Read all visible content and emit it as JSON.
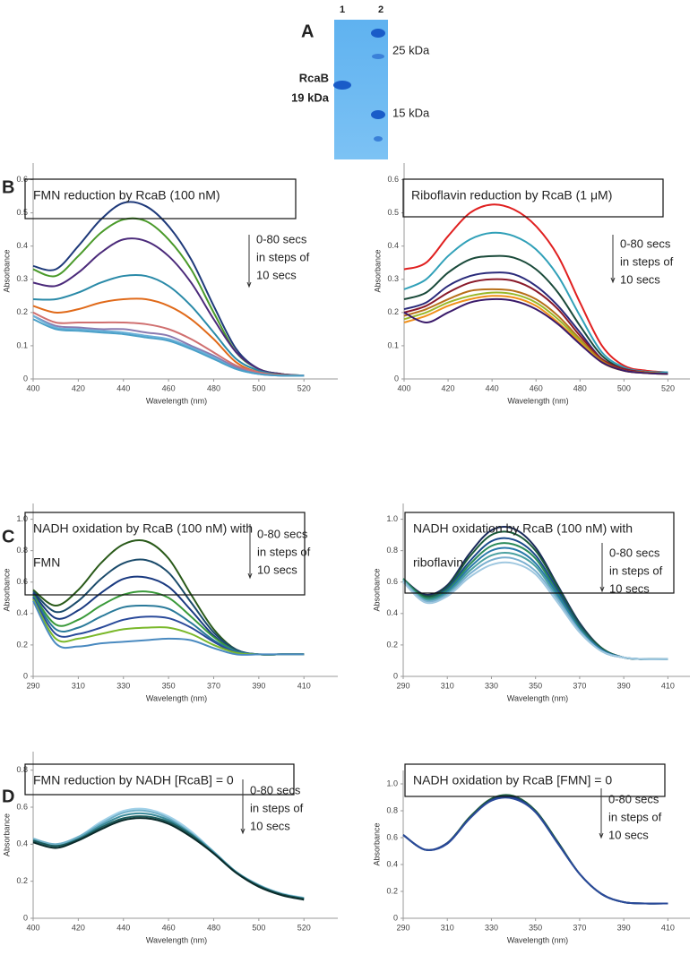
{
  "gel": {
    "panel": "A",
    "lanes": [
      "1",
      "2"
    ],
    "sample_label": [
      "RcaB",
      "19 kDa"
    ],
    "markers": [
      "25 kDa",
      "15 kDa"
    ]
  },
  "chart_data": [
    {
      "type": "line",
      "panel": "B",
      "title": [
        "FMN reduction by RcaB (100 nM)"
      ],
      "annotation": [
        "0-80 secs",
        "in steps of",
        "10 secs"
      ],
      "xlabel": "Wavelength (nm)",
      "ylabel": "Absorbance",
      "x": [
        400,
        410,
        420,
        430,
        440,
        450,
        460,
        470,
        480,
        490,
        500,
        510,
        520
      ],
      "xlim": [
        400,
        535
      ],
      "xticks": [
        400,
        420,
        440,
        460,
        480,
        500,
        520
      ],
      "ylim": [
        0,
        0.65
      ],
      "yticks": [
        0,
        0.1,
        0.2,
        0.3,
        0.4,
        0.5,
        0.6
      ],
      "series": [
        {
          "color": "#1f3a7a",
          "values": [
            0.34,
            0.33,
            0.4,
            0.48,
            0.53,
            0.52,
            0.46,
            0.36,
            0.22,
            0.09,
            0.03,
            0.015,
            0.01
          ]
        },
        {
          "color": "#4a9a2a",
          "values": [
            0.33,
            0.31,
            0.37,
            0.44,
            0.48,
            0.475,
            0.42,
            0.33,
            0.2,
            0.08,
            0.03,
            0.015,
            0.01
          ]
        },
        {
          "color": "#4b2a7a",
          "values": [
            0.29,
            0.28,
            0.32,
            0.38,
            0.42,
            0.415,
            0.37,
            0.29,
            0.18,
            0.08,
            0.03,
            0.015,
            0.01
          ]
        },
        {
          "color": "#2a8aa8",
          "values": [
            0.24,
            0.24,
            0.26,
            0.29,
            0.31,
            0.31,
            0.28,
            0.22,
            0.14,
            0.06,
            0.025,
            0.012,
            0.01
          ]
        },
        {
          "color": "#e06a1a",
          "values": [
            0.22,
            0.2,
            0.21,
            0.23,
            0.24,
            0.24,
            0.22,
            0.18,
            0.12,
            0.05,
            0.02,
            0.012,
            0.01
          ]
        },
        {
          "color": "#d07070",
          "values": [
            0.2,
            0.17,
            0.17,
            0.17,
            0.17,
            0.165,
            0.15,
            0.12,
            0.08,
            0.04,
            0.02,
            0.01,
            0.01
          ]
        },
        {
          "color": "#8a7ab0",
          "values": [
            0.19,
            0.16,
            0.155,
            0.15,
            0.15,
            0.14,
            0.13,
            0.1,
            0.07,
            0.035,
            0.015,
            0.01,
            0.01
          ]
        },
        {
          "color": "#6ab0d8",
          "values": [
            0.19,
            0.155,
            0.15,
            0.145,
            0.14,
            0.13,
            0.12,
            0.095,
            0.065,
            0.03,
            0.015,
            0.01,
            0.01
          ]
        },
        {
          "color": "#4aa0c8",
          "values": [
            0.18,
            0.15,
            0.145,
            0.14,
            0.135,
            0.125,
            0.115,
            0.09,
            0.06,
            0.03,
            0.015,
            0.01,
            0.01
          ]
        }
      ]
    },
    {
      "type": "line",
      "title": [
        "Riboflavin reduction by RcaB (1 μM)"
      ],
      "annotation": [
        "0-80 secs",
        "in steps of",
        "10 secs"
      ],
      "xlabel": "Wavelength (nm)",
      "ylabel": "Absorbance",
      "x": [
        400,
        410,
        420,
        430,
        440,
        450,
        460,
        470,
        480,
        490,
        500,
        510,
        520
      ],
      "xlim": [
        400,
        530
      ],
      "xticks": [
        400,
        420,
        440,
        460,
        480,
        500,
        520
      ],
      "ylim": [
        0,
        0.65
      ],
      "yticks": [
        0,
        0.1,
        0.2,
        0.3,
        0.4,
        0.5,
        0.6
      ],
      "series": [
        {
          "color": "#e02020",
          "values": [
            0.33,
            0.35,
            0.43,
            0.5,
            0.525,
            0.51,
            0.46,
            0.37,
            0.23,
            0.1,
            0.04,
            0.025,
            0.02
          ]
        },
        {
          "color": "#30a0b8",
          "values": [
            0.27,
            0.3,
            0.37,
            0.42,
            0.44,
            0.43,
            0.39,
            0.31,
            0.19,
            0.08,
            0.035,
            0.022,
            0.02
          ]
        },
        {
          "color": "#1a4a3a",
          "values": [
            0.24,
            0.26,
            0.32,
            0.36,
            0.37,
            0.365,
            0.33,
            0.26,
            0.16,
            0.07,
            0.03,
            0.02,
            0.015
          ]
        },
        {
          "color": "#2a2a7a",
          "values": [
            0.21,
            0.23,
            0.28,
            0.31,
            0.32,
            0.315,
            0.28,
            0.22,
            0.14,
            0.06,
            0.03,
            0.02,
            0.015
          ]
        },
        {
          "color": "#8a1a2a",
          "values": [
            0.2,
            0.22,
            0.26,
            0.29,
            0.3,
            0.295,
            0.265,
            0.21,
            0.13,
            0.06,
            0.03,
            0.02,
            0.015
          ]
        },
        {
          "color": "#b8701a",
          "values": [
            0.19,
            0.21,
            0.24,
            0.265,
            0.27,
            0.265,
            0.24,
            0.19,
            0.12,
            0.055,
            0.025,
            0.02,
            0.015
          ]
        },
        {
          "color": "#9ab82a",
          "values": [
            0.18,
            0.2,
            0.23,
            0.25,
            0.26,
            0.255,
            0.23,
            0.18,
            0.115,
            0.05,
            0.025,
            0.018,
            0.015
          ]
        },
        {
          "color": "#f0901a",
          "values": [
            0.17,
            0.19,
            0.22,
            0.24,
            0.25,
            0.245,
            0.22,
            0.17,
            0.11,
            0.05,
            0.025,
            0.018,
            0.015
          ]
        },
        {
          "color": "#3a1a6a",
          "values": [
            0.2,
            0.17,
            0.2,
            0.23,
            0.24,
            0.235,
            0.21,
            0.165,
            0.105,
            0.05,
            0.025,
            0.018,
            0.015
          ]
        }
      ]
    },
    {
      "type": "line",
      "panel": "C",
      "title": [
        "NADH oxidation by RcaB (100 nM) with",
        "FMN"
      ],
      "annotation": [
        "0-80 secs",
        "in steps of",
        "10 secs"
      ],
      "xlabel": "Wavelength (nm)",
      "ylabel": "Absorbance",
      "x": [
        290,
        300,
        310,
        320,
        330,
        340,
        350,
        360,
        370,
        380,
        390,
        400,
        410
      ],
      "xlim": [
        290,
        425
      ],
      "xticks": [
        290,
        310,
        330,
        350,
        370,
        390,
        410
      ],
      "ylim": [
        0,
        1.1
      ],
      "yticks": [
        0,
        0.2,
        0.4,
        0.6,
        0.8,
        {
          "value": 1,
          "label": "1.0"
        }
      ],
      "series": [
        {
          "color": "#2a5a1a",
          "values": [
            0.55,
            0.45,
            0.55,
            0.72,
            0.84,
            0.86,
            0.75,
            0.52,
            0.3,
            0.17,
            0.14,
            0.14,
            0.14
          ]
        },
        {
          "color": "#1a4a6a",
          "values": [
            0.54,
            0.41,
            0.48,
            0.62,
            0.72,
            0.74,
            0.66,
            0.47,
            0.28,
            0.17,
            0.14,
            0.14,
            0.14
          ]
        },
        {
          "color": "#1a3a80",
          "values": [
            0.53,
            0.37,
            0.42,
            0.53,
            0.62,
            0.63,
            0.57,
            0.42,
            0.26,
            0.16,
            0.14,
            0.14,
            0.14
          ]
        },
        {
          "color": "#3a9a3a",
          "values": [
            0.52,
            0.33,
            0.36,
            0.45,
            0.52,
            0.54,
            0.5,
            0.38,
            0.25,
            0.16,
            0.14,
            0.14,
            0.14
          ]
        },
        {
          "color": "#2a7a9a",
          "values": [
            0.51,
            0.3,
            0.31,
            0.38,
            0.44,
            0.45,
            0.43,
            0.34,
            0.23,
            0.16,
            0.14,
            0.14,
            0.14
          ]
        },
        {
          "color": "#2a4a9a",
          "values": [
            0.5,
            0.27,
            0.27,
            0.31,
            0.36,
            0.38,
            0.37,
            0.31,
            0.22,
            0.15,
            0.14,
            0.14,
            0.14
          ]
        },
        {
          "color": "#7ab82a",
          "values": [
            0.49,
            0.24,
            0.24,
            0.27,
            0.3,
            0.31,
            0.31,
            0.27,
            0.2,
            0.15,
            0.14,
            0.14,
            0.14
          ]
        },
        {
          "color": "#4a8ac0",
          "values": [
            0.48,
            0.21,
            0.19,
            0.21,
            0.22,
            0.23,
            0.24,
            0.23,
            0.18,
            0.14,
            0.14,
            0.14,
            0.14
          ]
        }
      ]
    },
    {
      "type": "line",
      "title": [
        "NADH oxidation by RcaB (100 nM) with",
        "riboflavin"
      ],
      "annotation": [
        "0-80 secs",
        "in steps of",
        "10 secs"
      ],
      "xlabel": "Wavelength (nm)",
      "ylabel": "Absorbance",
      "x": [
        290,
        300,
        310,
        320,
        330,
        340,
        350,
        360,
        370,
        380,
        390,
        400,
        410
      ],
      "xlim": [
        290,
        420
      ],
      "xticks": [
        290,
        310,
        330,
        350,
        370,
        390,
        410
      ],
      "ylim": [
        0,
        1.1
      ],
      "yticks": [
        0,
        0.2,
        0.4,
        0.6,
        0.8,
        {
          "value": 1,
          "label": "1.0"
        }
      ],
      "series": [
        {
          "color": "#1a2a5a",
          "values": [
            0.62,
            0.52,
            0.58,
            0.78,
            0.93,
            0.94,
            0.82,
            0.58,
            0.34,
            0.18,
            0.12,
            0.11,
            0.11
          ]
        },
        {
          "color": "#1a5a3a",
          "values": [
            0.62,
            0.51,
            0.57,
            0.76,
            0.9,
            0.91,
            0.8,
            0.57,
            0.33,
            0.18,
            0.12,
            0.11,
            0.11
          ]
        },
        {
          "color": "#1a4a8a",
          "values": [
            0.62,
            0.5,
            0.56,
            0.73,
            0.86,
            0.87,
            0.77,
            0.55,
            0.32,
            0.17,
            0.12,
            0.11,
            0.11
          ]
        },
        {
          "color": "#2a8a5a",
          "values": [
            0.62,
            0.5,
            0.55,
            0.71,
            0.83,
            0.84,
            0.75,
            0.53,
            0.31,
            0.17,
            0.12,
            0.11,
            0.11
          ]
        },
        {
          "color": "#2a7aaa",
          "values": [
            0.61,
            0.49,
            0.54,
            0.69,
            0.8,
            0.81,
            0.72,
            0.52,
            0.3,
            0.17,
            0.12,
            0.11,
            0.11
          ]
        },
        {
          "color": "#4aa0a0",
          "values": [
            0.61,
            0.49,
            0.53,
            0.67,
            0.77,
            0.78,
            0.7,
            0.5,
            0.29,
            0.16,
            0.12,
            0.11,
            0.11
          ]
        },
        {
          "color": "#7ab0d0",
          "values": [
            0.61,
            0.48,
            0.52,
            0.65,
            0.74,
            0.75,
            0.67,
            0.49,
            0.29,
            0.16,
            0.12,
            0.11,
            0.11
          ]
        },
        {
          "color": "#a0c8e0",
          "values": [
            0.6,
            0.47,
            0.51,
            0.63,
            0.71,
            0.72,
            0.65,
            0.47,
            0.28,
            0.16,
            0.12,
            0.11,
            0.11
          ]
        }
      ]
    },
    {
      "type": "line",
      "panel": "D",
      "title": [
        "FMN reduction by NADH [RcaB] = 0"
      ],
      "annotation": [
        "0-80 secs",
        "in steps of",
        "10 secs"
      ],
      "xlabel": "Wavelength (nm)",
      "ylabel": "Absorbance",
      "x": [
        400,
        410,
        420,
        430,
        440,
        450,
        460,
        470,
        480,
        490,
        500,
        510,
        520
      ],
      "xlim": [
        400,
        535
      ],
      "xticks": [
        400,
        420,
        440,
        460,
        480,
        500,
        520
      ],
      "ylim": [
        0,
        0.9
      ],
      "yticks": [
        0,
        0.2,
        0.4,
        0.6,
        0.8
      ],
      "series": [
        {
          "color": "#a0d0e8",
          "values": [
            0.43,
            0.4,
            0.44,
            0.52,
            0.58,
            0.59,
            0.55,
            0.47,
            0.36,
            0.25,
            0.18,
            0.135,
            0.11
          ]
        },
        {
          "color": "#70b0c8",
          "values": [
            0.43,
            0.4,
            0.44,
            0.51,
            0.57,
            0.58,
            0.54,
            0.46,
            0.36,
            0.25,
            0.18,
            0.13,
            0.11
          ]
        },
        {
          "color": "#3a8a9a",
          "values": [
            0.42,
            0.39,
            0.43,
            0.5,
            0.555,
            0.565,
            0.53,
            0.455,
            0.355,
            0.25,
            0.175,
            0.13,
            0.105
          ]
        },
        {
          "color": "#1a5a5a",
          "values": [
            0.42,
            0.39,
            0.425,
            0.49,
            0.54,
            0.55,
            0.52,
            0.45,
            0.35,
            0.245,
            0.175,
            0.13,
            0.105
          ]
        },
        {
          "color": "#0a2a2a",
          "values": [
            0.41,
            0.38,
            0.42,
            0.48,
            0.53,
            0.54,
            0.51,
            0.44,
            0.35,
            0.245,
            0.17,
            0.125,
            0.1
          ]
        }
      ]
    },
    {
      "type": "line",
      "title": [
        "NADH oxidation by RcaB [FMN] = 0"
      ],
      "annotation": [
        "0-80 secs",
        "in steps of",
        "10 secs"
      ],
      "xlabel": "Wavelength (nm)",
      "ylabel": "Absorbance",
      "x": [
        290,
        300,
        310,
        320,
        330,
        340,
        350,
        360,
        370,
        380,
        390,
        400,
        410
      ],
      "xlim": [
        290,
        420
      ],
      "xticks": [
        290,
        310,
        330,
        350,
        370,
        390,
        410
      ],
      "ylim": [
        0,
        1.1
      ],
      "yticks": [
        0,
        0.2,
        0.4,
        0.6,
        0.8,
        {
          "value": 1,
          "label": "1.0"
        }
      ],
      "series": [
        {
          "color": "#1a5a3a",
          "values": [
            0.62,
            0.51,
            0.56,
            0.75,
            0.89,
            0.91,
            0.8,
            0.57,
            0.33,
            0.18,
            0.12,
            0.11,
            0.11
          ]
        },
        {
          "color": "#1a3a7a",
          "values": [
            0.62,
            0.51,
            0.56,
            0.74,
            0.88,
            0.9,
            0.79,
            0.56,
            0.33,
            0.18,
            0.12,
            0.11,
            0.11
          ]
        },
        {
          "color": "#2a4a9a",
          "values": [
            0.62,
            0.51,
            0.555,
            0.74,
            0.875,
            0.89,
            0.79,
            0.56,
            0.33,
            0.18,
            0.12,
            0.11,
            0.11
          ]
        }
      ]
    }
  ]
}
